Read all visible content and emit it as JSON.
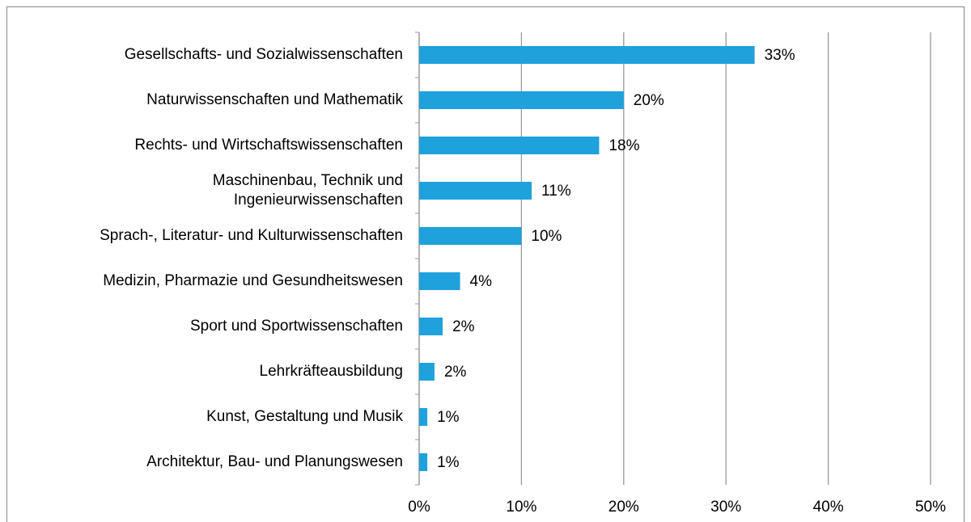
{
  "chart_data": {
    "type": "barh",
    "categories": [
      "Gesellschafts- und Sozialwissenschaften",
      "Naturwissenschaften und Mathematik",
      "Rechts- und Wirtschaftswissenschaften",
      "Maschinenbau, Technik und\nIngenieurwissenschaften",
      "Sprach-, Literatur- und Kulturwissenschaften",
      "Medizin, Pharmazie und Gesundheitswesen",
      "Sport und Sportwissenschaften",
      "Lehrkräfteausbildung",
      "Kunst, Gestaltung und Musik",
      "Architektur, Bau- und Planungswesen"
    ],
    "values": [
      32.8,
      20,
      17.6,
      11,
      10,
      4,
      2.3,
      1.5,
      0.8,
      0.8
    ],
    "value_labels": [
      "33%",
      "20%",
      "18%",
      "11%",
      "10%",
      "4%",
      "2%",
      "2%",
      "1%",
      "1%"
    ],
    "color": "#1fa1dc",
    "xlim": [
      0,
      50
    ],
    "xticks": [
      {
        "value": 0,
        "label": "0%"
      },
      {
        "value": 10,
        "label": "10%"
      },
      {
        "value": 20,
        "label": "20%"
      },
      {
        "value": 30,
        "label": "30%"
      },
      {
        "value": 40,
        "label": "40%"
      },
      {
        "value": 50,
        "label": "50%"
      }
    ],
    "grid": true
  }
}
